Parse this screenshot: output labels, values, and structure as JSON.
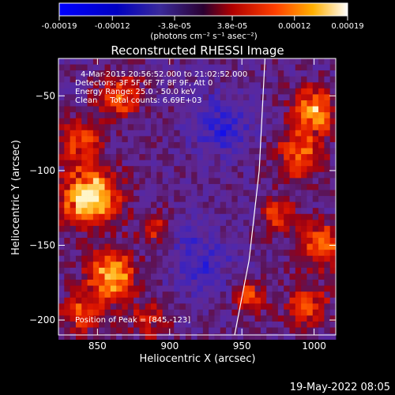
{
  "colorbar": {
    "tick_labels": [
      "-0.00019",
      "-0.00012",
      "-3.8e-05",
      "3.8e-05",
      "0.00012",
      "0.00019"
    ],
    "unit_label": "(photons cm⁻² s⁻¹ asec⁻²)",
    "range": [
      -0.00019,
      0.00019
    ]
  },
  "chart_data": {
    "type": "heatmap",
    "title": "Reconstructed RHESSI Image",
    "xlabel": "Heliocentric X (arcsec)",
    "ylabel": "Heliocentric Y (arcsec)",
    "xlim": [
      823,
      1015
    ],
    "ylim": [
      -210,
      -25
    ],
    "x_ticks": [
      850,
      900,
      950,
      1000
    ],
    "y_ticks": [
      -50,
      -100,
      -150,
      -200
    ],
    "x_tick_labels": [
      "850",
      "900",
      "950",
      "1000"
    ],
    "y_tick_labels": [
      "−50",
      "−100",
      "−150",
      "−200"
    ],
    "annotations": [
      "4-Mar-2015 20:56:52.000 to 21:02:52.000",
      "Detectors: 3F 5F 6F 7F 8F 9F, Att 0",
      "Energy Range: 25.0 - 50.0 keV",
      "Clean     Total counts: 6.69E+03"
    ],
    "peak_label": "Position of Peak = [845,-123]",
    "peak": [
      845,
      -123
    ],
    "limb_line": [
      [
        945,
        -210
      ],
      [
        955,
        -160
      ],
      [
        962,
        -100
      ],
      [
        966,
        -25
      ]
    ],
    "sources": [
      {
        "x": 845,
        "y": -118,
        "amp": 1.0,
        "w": 13
      },
      {
        "x": 860,
        "y": -170,
        "amp": 0.8,
        "w": 11
      },
      {
        "x": 838,
        "y": -80,
        "amp": 0.55,
        "w": 10
      },
      {
        "x": 865,
        "y": -50,
        "amp": 0.55,
        "w": 10
      },
      {
        "x": 840,
        "y": -195,
        "amp": 0.5,
        "w": 10
      },
      {
        "x": 1000,
        "y": -60,
        "amp": 0.75,
        "w": 10
      },
      {
        "x": 990,
        "y": -90,
        "amp": 0.55,
        "w": 11
      },
      {
        "x": 1005,
        "y": -150,
        "amp": 0.6,
        "w": 10
      },
      {
        "x": 995,
        "y": -190,
        "amp": 0.5,
        "w": 10
      },
      {
        "x": 975,
        "y": -130,
        "amp": 0.45,
        "w": 8
      },
      {
        "x": 955,
        "y": -185,
        "amp": 0.5,
        "w": 7
      },
      {
        "x": 890,
        "y": -140,
        "amp": 0.35,
        "w": 8
      },
      {
        "x": 885,
        "y": -200,
        "amp": 0.35,
        "w": 9
      },
      {
        "x": 935,
        "y": -70,
        "amp": -0.35,
        "w": 14
      },
      {
        "x": 920,
        "y": -160,
        "amp": -0.25,
        "w": 16
      }
    ]
  },
  "footer": {
    "date": "19-May-2022 08:05"
  }
}
